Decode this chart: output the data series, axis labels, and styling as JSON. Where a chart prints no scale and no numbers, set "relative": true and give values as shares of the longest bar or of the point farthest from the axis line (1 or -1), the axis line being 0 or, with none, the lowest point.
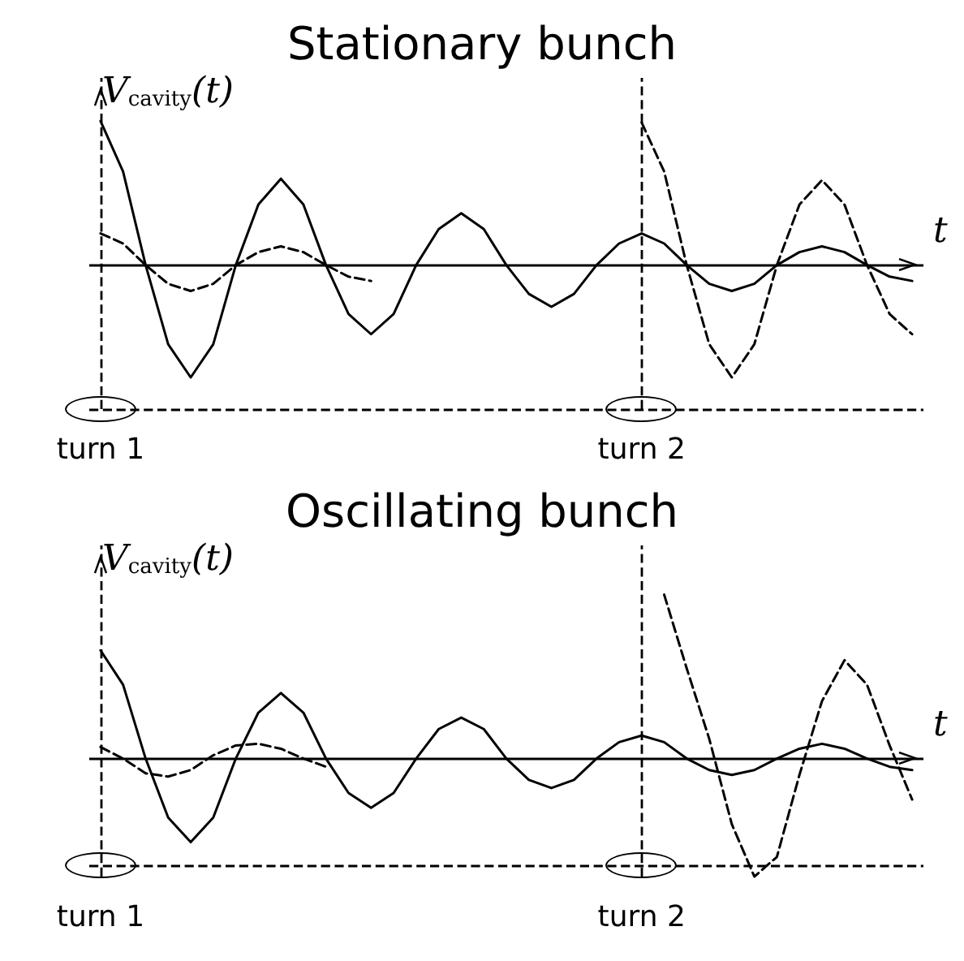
{
  "chart_data": [
    {
      "type": "line",
      "title": "Stationary bunch",
      "ylabel": "V$_{cavity}$(t)",
      "relative": true,
      "marker": "none",
      "categories": [
        "turn 1",
        null,
        null,
        null,
        null,
        null,
        null,
        null,
        null,
        null,
        null,
        null,
        null,
        null,
        null,
        null,
        null,
        null,
        null,
        null,
        null,
        null,
        null,
        null,
        "turn 2",
        null,
        null,
        null,
        null,
        null,
        null,
        null,
        null,
        null,
        null,
        null,
        null
      ],
      "series": [
        {
          "color": "#000000",
          "line_style": "solid",
          "values": [
            1.0,
            0.65,
            0,
            -0.55,
            -0.78,
            -0.55,
            0,
            0.42,
            0.6,
            0.42,
            0,
            -0.34,
            -0.48,
            -0.34,
            0,
            0.25,
            0.36,
            0.25,
            0,
            -0.2,
            -0.29,
            -0.2,
            0,
            0.15,
            0.22,
            0.15,
            0,
            -0.13,
            -0.18,
            -0.13,
            0,
            0.09,
            0.13,
            0.09,
            0,
            -0.08,
            -0.11
          ]
        },
        {
          "color": "#000000",
          "line_style": "dashed",
          "values": [
            0.22,
            0.15,
            0,
            -0.13,
            -0.18,
            -0.13,
            0,
            0.09,
            0.13,
            0.09,
            0,
            -0.08,
            -0.11,
            null,
            null,
            null,
            null,
            null,
            null,
            null,
            null,
            null,
            null,
            null,
            null,
            null,
            null,
            null,
            null,
            null,
            null,
            null,
            null,
            null,
            null,
            null,
            null
          ]
        },
        {
          "color": "#000000",
          "line_style": "dashed",
          "values": [
            null,
            null,
            null,
            null,
            null,
            null,
            null,
            null,
            null,
            null,
            null,
            null,
            null,
            null,
            null,
            null,
            null,
            null,
            null,
            null,
            null,
            null,
            null,
            null,
            0.99,
            0.65,
            0,
            -0.55,
            -0.78,
            -0.55,
            0,
            0.42,
            0.59,
            0.42,
            0,
            -0.34,
            -0.48
          ]
        }
      ],
      "ref_lines": [
        {
          "axis": "x",
          "value": "turn 1",
          "color": "#000000",
          "line_style": "dashed"
        },
        {
          "axis": "x",
          "value": "turn 2",
          "color": "#000000",
          "line_style": "dashed"
        },
        {
          "axis": "y",
          "value": 0,
          "label": "t",
          "color": "#000000",
          "line_style": "solid"
        },
        {
          "axis": "y",
          "value": -1.0,
          "color": "#000000",
          "line_style": "dashed"
        }
      ]
    },
    {
      "type": "line",
      "title": "Oscillating bunch",
      "ylabel": "V$_{cavity}$(t)",
      "relative": true,
      "marker": "none",
      "categories": [
        "turn 1",
        null,
        null,
        null,
        null,
        null,
        null,
        null,
        null,
        null,
        null,
        null,
        null,
        null,
        null,
        null,
        null,
        null,
        null,
        null,
        null,
        null,
        null,
        null,
        "turn 2",
        null,
        null,
        null,
        null,
        null,
        null,
        null,
        null,
        null,
        null,
        null,
        null
      ],
      "series": [
        {
          "color": "#000000",
          "line_style": "solid",
          "values": [
            0.66,
            0.45,
            0,
            -0.36,
            -0.51,
            -0.36,
            0,
            0.28,
            0.4,
            0.28,
            0,
            -0.21,
            -0.3,
            -0.21,
            0,
            0.18,
            0.25,
            0.18,
            0,
            -0.13,
            -0.18,
            -0.13,
            0,
            0.1,
            0.14,
            0.1,
            0,
            -0.07,
            -0.1,
            -0.07,
            0,
            0.06,
            0.09,
            0.06,
            0,
            -0.05,
            -0.07
          ]
        },
        {
          "color": "#000000",
          "line_style": "dashed",
          "values": [
            0.07,
            0,
            -0.09,
            -0.11,
            -0.07,
            0.02,
            0.08,
            0.09,
            0.06,
            0,
            -0.05,
            null,
            null,
            null,
            null,
            null,
            null,
            null,
            null,
            null,
            null,
            null,
            null,
            null,
            null,
            null,
            null,
            null,
            null,
            null,
            null,
            null,
            null,
            null,
            null,
            null,
            null
          ]
        },
        {
          "color": "#000000",
          "line_style": "dashed",
          "values": [
            null,
            null,
            null,
            null,
            null,
            null,
            null,
            null,
            null,
            null,
            null,
            null,
            null,
            null,
            null,
            null,
            null,
            null,
            null,
            null,
            null,
            null,
            null,
            null,
            null,
            1.0,
            0.55,
            0.12,
            -0.4,
            -0.72,
            -0.6,
            -0.1,
            0.35,
            0.6,
            0.45,
            0.08,
            -0.25
          ]
        }
      ],
      "ref_lines": [
        {
          "axis": "x",
          "value": "turn 1",
          "color": "#000000",
          "line_style": "dashed"
        },
        {
          "axis": "x",
          "value": "turn 2",
          "color": "#000000",
          "line_style": "dashed"
        },
        {
          "axis": "y",
          "value": 0,
          "label": "t",
          "color": "#000000",
          "line_style": "solid"
        },
        {
          "axis": "y",
          "value": -0.65,
          "color": "#000000",
          "line_style": "dashed"
        }
      ]
    }
  ]
}
